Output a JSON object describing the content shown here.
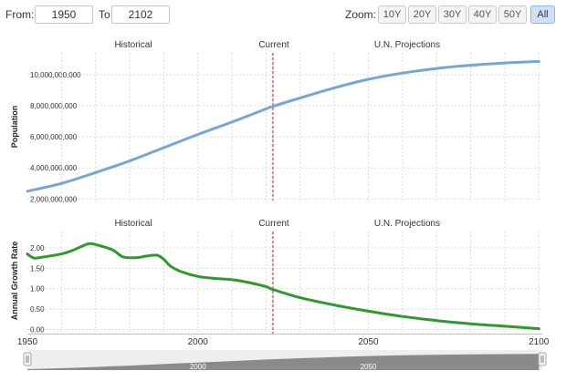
{
  "controls": {
    "from_label": "From:",
    "from_value": "1950",
    "to_label": "To:",
    "to_value": "2102",
    "zoom_label": "Zoom:",
    "zoom_buttons": [
      {
        "label": "10Y",
        "active": false
      },
      {
        "label": "20Y",
        "active": false
      },
      {
        "label": "30Y",
        "active": false
      },
      {
        "label": "40Y",
        "active": false
      },
      {
        "label": "50Y",
        "active": false
      },
      {
        "label": "All",
        "active": true
      }
    ]
  },
  "sections": {
    "historical": "Historical",
    "current": "Current",
    "projections": "U.N. Projections"
  },
  "colors": {
    "population": "#74a6d6",
    "growth": "#2e9a2e",
    "current_line": "#d43c3c",
    "grid": "#dddddd"
  },
  "x_axis": {
    "ticks": [
      "1950",
      "2000",
      "2050",
      "2100"
    ],
    "range": [
      1950,
      2101
    ],
    "current_year": 2022
  },
  "navigator": {
    "labels": [
      "2000",
      "2050"
    ],
    "range": [
      1950,
      2101
    ]
  },
  "chart_data": [
    {
      "type": "line",
      "ylabel": "Population",
      "ylim": [
        1900000000,
        11400000000
      ],
      "yticks": [
        2000000000,
        4000000000,
        6000000000,
        8000000000,
        10000000000
      ],
      "ytick_labels": [
        "2,000,000,000",
        "4,000,000,000",
        "6,000,000,000",
        "8,000,000,000",
        "10,000,000,000"
      ],
      "grid": true,
      "series": [
        {
          "x": [
            1950,
            1960,
            1970,
            1980,
            1990,
            2000,
            2010,
            2020,
            2022,
            2030,
            2040,
            2050,
            2060,
            2070,
            2080,
            2090,
            2100
          ],
          "values": [
            2500000000,
            3000000000,
            3700000000,
            4450000000,
            5300000000,
            6150000000,
            6950000000,
            7800000000,
            7960000000,
            8500000000,
            9150000000,
            9700000000,
            10100000000,
            10400000000,
            10600000000,
            10750000000,
            10850000000
          ]
        }
      ]
    },
    {
      "type": "line",
      "ylabel": "Annual Growth Rate",
      "ylim": [
        -0.1,
        2.4
      ],
      "yticks": [
        0,
        0.5,
        1,
        1.5,
        2
      ],
      "ytick_labels": [
        "0.00",
        "0.50",
        "1.00",
        "1.50",
        "2.00"
      ],
      "grid": true,
      "series": [
        {
          "x": [
            1950,
            1952,
            1955,
            1960,
            1963,
            1965,
            1968,
            1970,
            1975,
            1978,
            1982,
            1985,
            1988,
            1990,
            1992,
            1995,
            2000,
            2005,
            2010,
            2015,
            2020,
            2022,
            2030,
            2040,
            2050,
            2060,
            2070,
            2080,
            2090,
            2100
          ],
          "values": [
            1.85,
            1.75,
            1.78,
            1.85,
            1.93,
            2.0,
            2.1,
            2.08,
            1.95,
            1.78,
            1.76,
            1.8,
            1.82,
            1.72,
            1.55,
            1.42,
            1.3,
            1.25,
            1.22,
            1.15,
            1.05,
            0.98,
            0.78,
            0.6,
            0.45,
            0.32,
            0.22,
            0.14,
            0.08,
            0.02
          ]
        }
      ]
    }
  ]
}
